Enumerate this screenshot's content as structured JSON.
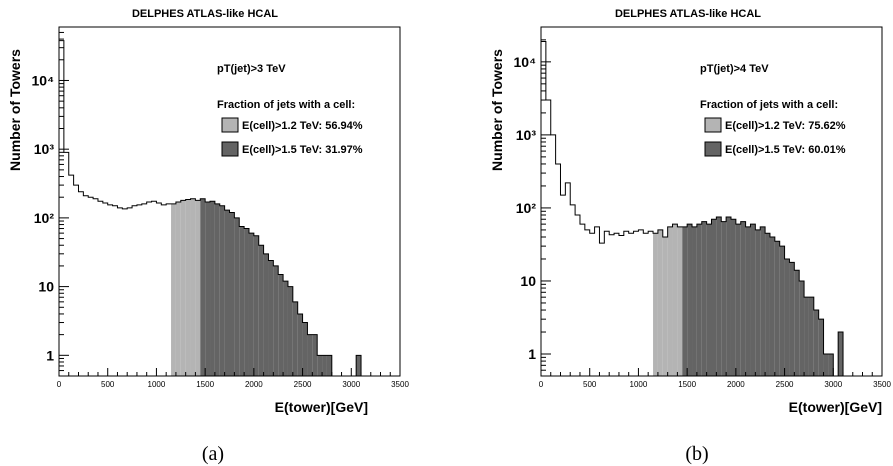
{
  "chart_data": [
    {
      "type": "bar",
      "title": "DELPHES ATLAS-like HCAL",
      "annotation": "pT(jet)>3 TeV",
      "legend_title": "Fraction of jets with a cell:",
      "legend_placement": "top-right",
      "xlabel": "E(tower)[GeV]",
      "ylabel": "Number of Towers",
      "xlim": [
        0,
        3500
      ],
      "ylim": [
        0.5,
        60000
      ],
      "yscale": "log",
      "grid": false,
      "bin_width": 50,
      "x_ticks": [
        0,
        500,
        1000,
        1500,
        2000,
        2500,
        3000,
        3500
      ],
      "x_tick_labels": [
        "0",
        "500",
        "1000",
        "1500",
        "2000",
        "2500",
        "3000",
        "3500"
      ],
      "y_ticks": [
        1,
        10,
        100,
        1000,
        10000
      ],
      "y_tick_labels": [
        "1",
        "10",
        "10²",
        "10³",
        "10⁴"
      ],
      "series": [
        {
          "name": "E(cell)>1.2 TeV: 56.94%",
          "color": "#b4b4b4",
          "x": [
            1175,
            1225,
            1275,
            1325,
            1375,
            1425
          ],
          "y": [
            160,
            170,
            180,
            185,
            190,
            180
          ]
        },
        {
          "name": "E(cell)>1.5 TeV: 31.97%",
          "color": "#646464",
          "x": [
            1475,
            1525,
            1575,
            1625,
            1675,
            1725,
            1775,
            1825,
            1875,
            1925,
            1975,
            2025,
            2075,
            2125,
            2175,
            2225,
            2275,
            2325,
            2375,
            2425,
            2475,
            2525,
            2575,
            2625,
            2675,
            2725,
            2775,
            3075
          ],
          "y": [
            190,
            170,
            175,
            160,
            150,
            130,
            120,
            100,
            75,
            70,
            60,
            55,
            40,
            30,
            24,
            20,
            15,
            12,
            10,
            6,
            4,
            3,
            2,
            2,
            1,
            1,
            1,
            1
          ]
        }
      ],
      "outline": {
        "x": [
          25,
          75,
          125,
          175,
          225,
          275,
          325,
          375,
          425,
          475,
          525,
          575,
          625,
          675,
          725,
          775,
          825,
          875,
          925,
          975,
          1025,
          1075,
          1125
        ],
        "y": [
          38000,
          900,
          420,
          300,
          240,
          210,
          200,
          190,
          175,
          165,
          155,
          150,
          140,
          135,
          140,
          150,
          155,
          160,
          170,
          175,
          165,
          155,
          160
        ]
      },
      "caption": "(a)"
    },
    {
      "type": "bar",
      "title": "DELPHES ATLAS-like HCAL",
      "annotation": "pT(jet)>4 TeV",
      "legend_title": "Fraction of jets with a cell:",
      "legend_placement": "top-right",
      "xlabel": "E(tower)[GeV]",
      "ylabel": "Number of Towers",
      "xlim": [
        0,
        3500
      ],
      "ylim": [
        0.5,
        30000
      ],
      "yscale": "log",
      "grid": false,
      "bin_width": 50,
      "x_ticks": [
        0,
        500,
        1000,
        1500,
        2000,
        2500,
        3000,
        3500
      ],
      "x_tick_labels": [
        "0",
        "500",
        "1000",
        "1500",
        "2000",
        "2500",
        "3000",
        "3500"
      ],
      "y_ticks": [
        1,
        10,
        100,
        1000,
        10000
      ],
      "y_tick_labels": [
        "1",
        "10",
        "10²",
        "10³",
        "10⁴"
      ],
      "series": [
        {
          "name": "E(cell)>1.2 TeV: 75.62%",
          "color": "#b4b4b4",
          "x": [
            1175,
            1225,
            1275,
            1325,
            1375,
            1425
          ],
          "y": [
            45,
            50,
            40,
            55,
            60,
            55
          ]
        },
        {
          "name": "E(cell)>1.5 TeV: 60.01%",
          "color": "#646464",
          "x": [
            1475,
            1525,
            1575,
            1625,
            1675,
            1725,
            1775,
            1825,
            1875,
            1925,
            1975,
            2025,
            2075,
            2125,
            2175,
            2225,
            2275,
            2325,
            2375,
            2425,
            2475,
            2525,
            2575,
            2625,
            2675,
            2725,
            2775,
            2825,
            2875,
            2925,
            2975,
            3025,
            3075
          ],
          "y": [
            55,
            60,
            55,
            60,
            65,
            60,
            70,
            75,
            65,
            75,
            70,
            60,
            65,
            55,
            60,
            50,
            55,
            45,
            40,
            35,
            30,
            20,
            18,
            14,
            10,
            6,
            6,
            4,
            3,
            1,
            1,
            0,
            2
          ]
        }
      ],
      "outline": {
        "x": [
          25,
          75,
          125,
          175,
          225,
          275,
          325,
          375,
          425,
          475,
          525,
          575,
          625,
          675,
          725,
          775,
          825,
          875,
          925,
          975,
          1025,
          1075,
          1125
        ],
        "y": [
          19000,
          3000,
          1000,
          400,
          150,
          220,
          110,
          80,
          60,
          50,
          45,
          55,
          33,
          48,
          43,
          45,
          42,
          48,
          45,
          48,
          50,
          45,
          48
        ]
      },
      "caption": "(b)"
    }
  ]
}
